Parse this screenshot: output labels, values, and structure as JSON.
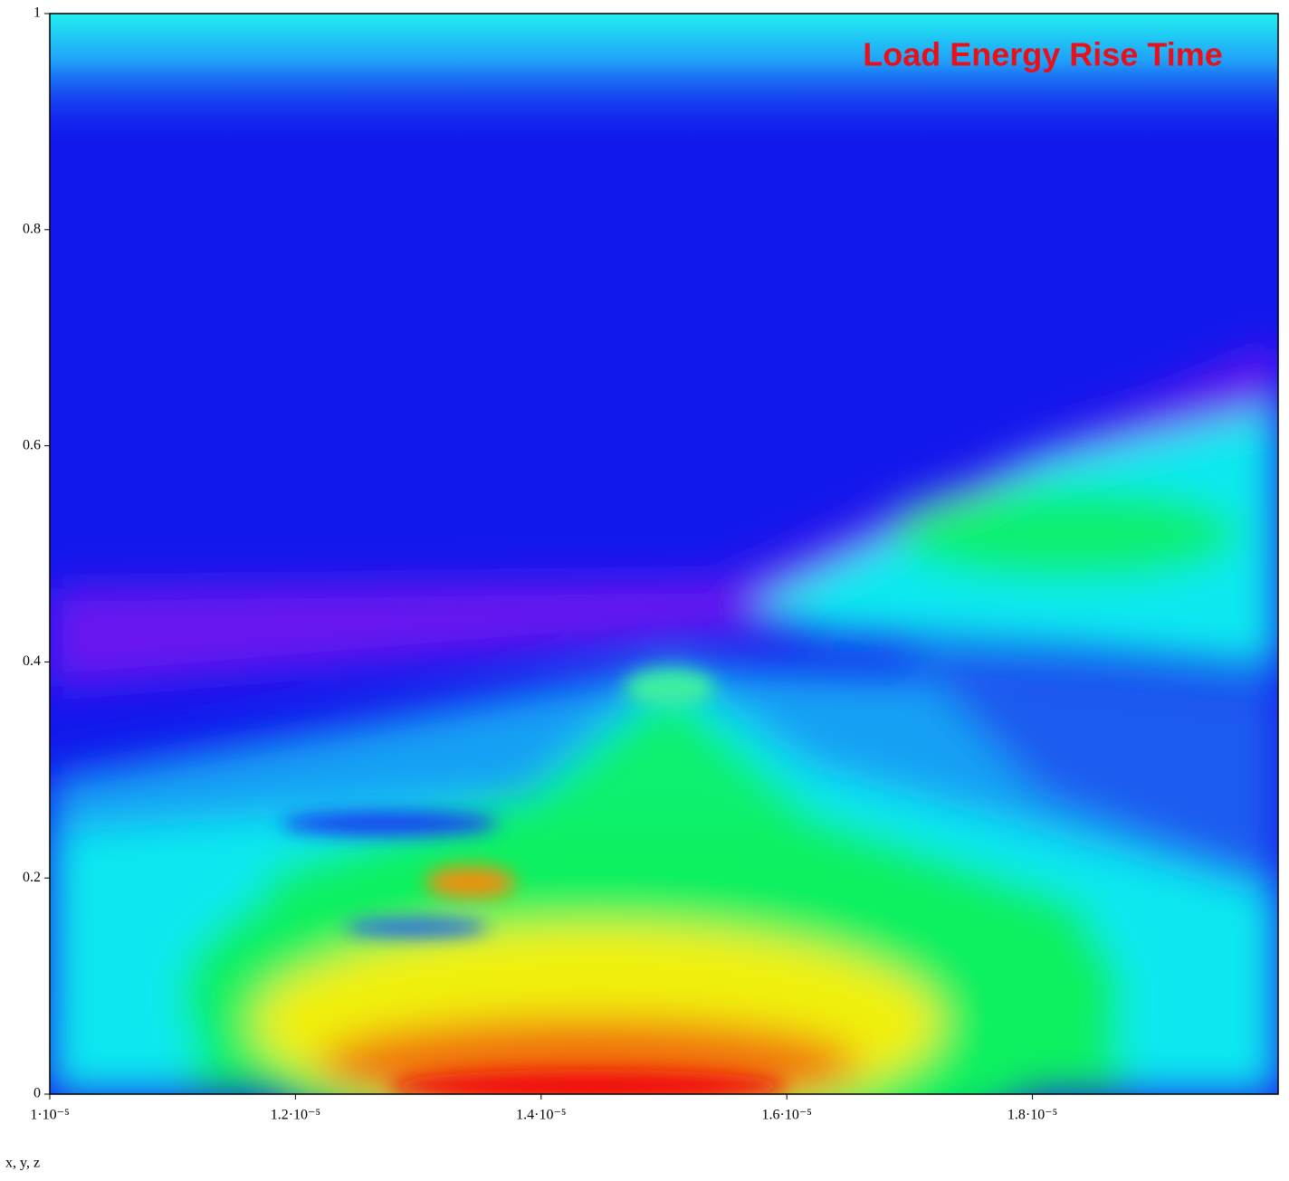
{
  "chart_data": {
    "type": "heatmap",
    "title": "Load Energy Rise Time",
    "axis_label": "x, y, z",
    "xlim": [
      1e-05,
      2e-05
    ],
    "xticks": [
      {
        "value": 1e-05,
        "label": "1·10⁻⁵"
      },
      {
        "value": 1.2e-05,
        "label": "1.2·10⁻⁵"
      },
      {
        "value": 1.4e-05,
        "label": "1.4·10⁻⁵"
      },
      {
        "value": 1.6e-05,
        "label": "1.6·10⁻⁵"
      },
      {
        "value": 1.8e-05,
        "label": "1.8·10⁻⁵"
      }
    ],
    "ylim": [
      0,
      1
    ],
    "yticks": [
      0,
      0.2,
      0.4,
      0.6,
      0.8,
      1
    ],
    "title_color": "#e8101a"
  }
}
